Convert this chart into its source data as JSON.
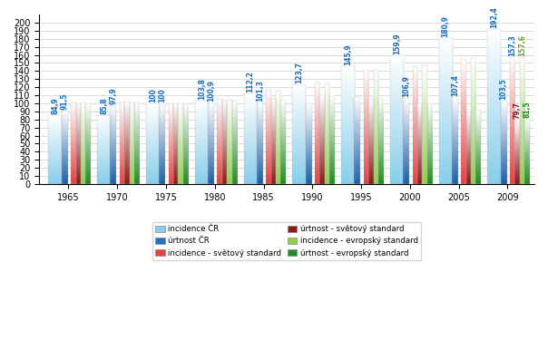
{
  "years": [
    1965,
    1970,
    1975,
    1980,
    1985,
    1990,
    1995,
    2000,
    2005,
    2009
  ],
  "incidence_CR": [
    84.9,
    85.8,
    100.0,
    103.8,
    112.2,
    123.7,
    145.9,
    159.9,
    180.9,
    192.4
  ],
  "umrtnost_CR": [
    91.5,
    97.9,
    100.0,
    100.9,
    101.3,
    100.0,
    108.0,
    106.9,
    107.4,
    103.5
  ],
  "incidence_svet": [
    101.0,
    101.0,
    100.0,
    105.0,
    117.0,
    126.0,
    141.0,
    146.0,
    155.0,
    157.3
  ],
  "umrtnost_svet": [
    100.0,
    102.0,
    100.0,
    103.0,
    105.0,
    110.0,
    106.0,
    100.0,
    90.0,
    79.7
  ],
  "incidence_eu": [
    101.0,
    101.0,
    100.0,
    104.0,
    116.0,
    125.0,
    142.0,
    147.0,
    156.0,
    157.6
  ],
  "umrtnost_eu": [
    100.0,
    101.0,
    100.0,
    103.0,
    104.0,
    109.0,
    106.0,
    100.0,
    92.0,
    81.5
  ],
  "labels_incidence_CR": [
    "84,9",
    "85,8",
    "100",
    "103,8",
    "112,2",
    "123,7",
    "145,9",
    "159,9",
    "180,9",
    "192,4"
  ],
  "labels_umrtnost_CR": [
    "91,5",
    "97,9",
    "100",
    "100,9",
    "101,3",
    null,
    null,
    "106,9",
    "107,4",
    "103,5"
  ],
  "labels_incidence_svet": [
    null,
    null,
    null,
    null,
    null,
    null,
    null,
    null,
    null,
    "157,3"
  ],
  "labels_umrtnost_svet": [
    null,
    null,
    null,
    null,
    null,
    null,
    null,
    null,
    null,
    "79,7"
  ],
  "labels_incidence_eu": [
    null,
    null,
    null,
    null,
    null,
    null,
    null,
    null,
    null,
    "157,6"
  ],
  "labels_umrtnost_eu": [
    null,
    null,
    null,
    null,
    null,
    null,
    null,
    null,
    null,
    "81,5"
  ],
  "show_label_incidence_CR": [
    true,
    true,
    true,
    true,
    true,
    true,
    true,
    true,
    true,
    true
  ],
  "show_label_umrtnost_CR": [
    true,
    true,
    true,
    true,
    true,
    false,
    false,
    true,
    true,
    true
  ],
  "show_label_incidence_svet": [
    false,
    false,
    false,
    false,
    false,
    false,
    false,
    false,
    false,
    true
  ],
  "show_label_umrtnost_svet": [
    false,
    false,
    false,
    false,
    false,
    false,
    false,
    false,
    false,
    true
  ],
  "show_label_incidence_eu": [
    false,
    false,
    false,
    false,
    false,
    false,
    false,
    false,
    false,
    true
  ],
  "show_label_umrtnost_eu": [
    false,
    false,
    false,
    false,
    false,
    false,
    false,
    false,
    false,
    true
  ],
  "ylim": [
    0,
    210
  ],
  "yticks": [
    0,
    10,
    20,
    30,
    40,
    50,
    60,
    70,
    80,
    90,
    100,
    110,
    120,
    130,
    140,
    150,
    160,
    170,
    180,
    190,
    200
  ],
  "color_inc_CR": "#87ceeb",
  "color_mort_CR": "#1e5faa",
  "color_inc_svet": "#e84040",
  "color_mort_svet": "#8b1a1a",
  "color_inc_eu": "#90d050",
  "color_mort_eu": "#228b22",
  "lbl_color_inc_CR": "#1a6fbf",
  "lbl_color_mort_CR": "#1a6fbf",
  "lbl_color_inc_svet": "#1a6fbf",
  "lbl_color_mort_svet": "#8b1a1a",
  "lbl_color_inc_eu": "#6aaa20",
  "lbl_color_mort_eu": "#228b22",
  "legend_entries": [
    [
      "incidence ČR",
      "#87ceeb",
      "#1e5faa"
    ],
    [
      "úrtnost ČR",
      "#2a6fbf",
      "#1a4a8a"
    ],
    [
      "incidence - světový standard",
      "#e84040",
      "#e84040"
    ],
    [
      "úrtnost - světový standard",
      "#8b1a1a",
      "#8b1a1a"
    ],
    [
      "incidence - evropský standard",
      "#90d050",
      "#90d050"
    ],
    [
      "úrtnost - evropský standard",
      "#228b22",
      "#228b22"
    ]
  ],
  "tick_fontsize": 7,
  "bar_label_fontsize": 5.5,
  "background_color": "#ffffff"
}
